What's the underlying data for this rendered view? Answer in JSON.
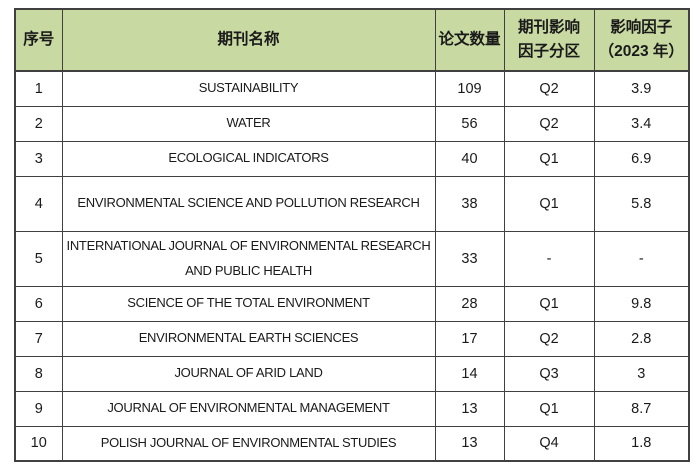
{
  "table": {
    "header_bg": "#c8d9a2",
    "border_color": "#404040",
    "columns": [
      {
        "key": "no",
        "label": "序号"
      },
      {
        "key": "journal",
        "label": "期刊名称"
      },
      {
        "key": "papers",
        "label": "论文数量"
      },
      {
        "key": "quartile",
        "label": "期刊影响\n因子分区"
      },
      {
        "key": "impact_factor",
        "label": "影响因子\n（2023 年）"
      }
    ],
    "rows": [
      {
        "no": "1",
        "journal": "SUSTAINABILITY",
        "papers": "109",
        "quartile": "Q2",
        "impact_factor": "3.9"
      },
      {
        "no": "2",
        "journal": "WATER",
        "papers": "56",
        "quartile": "Q2",
        "impact_factor": "3.4"
      },
      {
        "no": "3",
        "journal": "ECOLOGICAL INDICATORS",
        "papers": "40",
        "quartile": "Q1",
        "impact_factor": "6.9"
      },
      {
        "no": "4",
        "journal": "ENVIRONMENTAL SCIENCE AND POLLUTION RESEARCH",
        "papers": "38",
        "quartile": "Q1",
        "impact_factor": "5.8"
      },
      {
        "no": "5",
        "journal": "INTERNATIONAL JOURNAL OF ENVIRONMENTAL RESEARCH AND PUBLIC HEALTH",
        "papers": "33",
        "quartile": "-",
        "impact_factor": "-"
      },
      {
        "no": "6",
        "journal": "SCIENCE OF THE TOTAL ENVIRONMENT",
        "papers": "28",
        "quartile": "Q1",
        "impact_factor": "9.8"
      },
      {
        "no": "7",
        "journal": "ENVIRONMENTAL EARTH SCIENCES",
        "papers": "17",
        "quartile": "Q2",
        "impact_factor": "2.8"
      },
      {
        "no": "8",
        "journal": "JOURNAL OF ARID LAND",
        "papers": "14",
        "quartile": "Q3",
        "impact_factor": "3"
      },
      {
        "no": "9",
        "journal": "JOURNAL OF ENVIRONMENTAL MANAGEMENT",
        "papers": "13",
        "quartile": "Q1",
        "impact_factor": "8.7"
      },
      {
        "no": "10",
        "journal": "POLISH JOURNAL OF ENVIRONMENTAL STUDIES",
        "papers": "13",
        "quartile": "Q4",
        "impact_factor": "1.8"
      }
    ]
  }
}
